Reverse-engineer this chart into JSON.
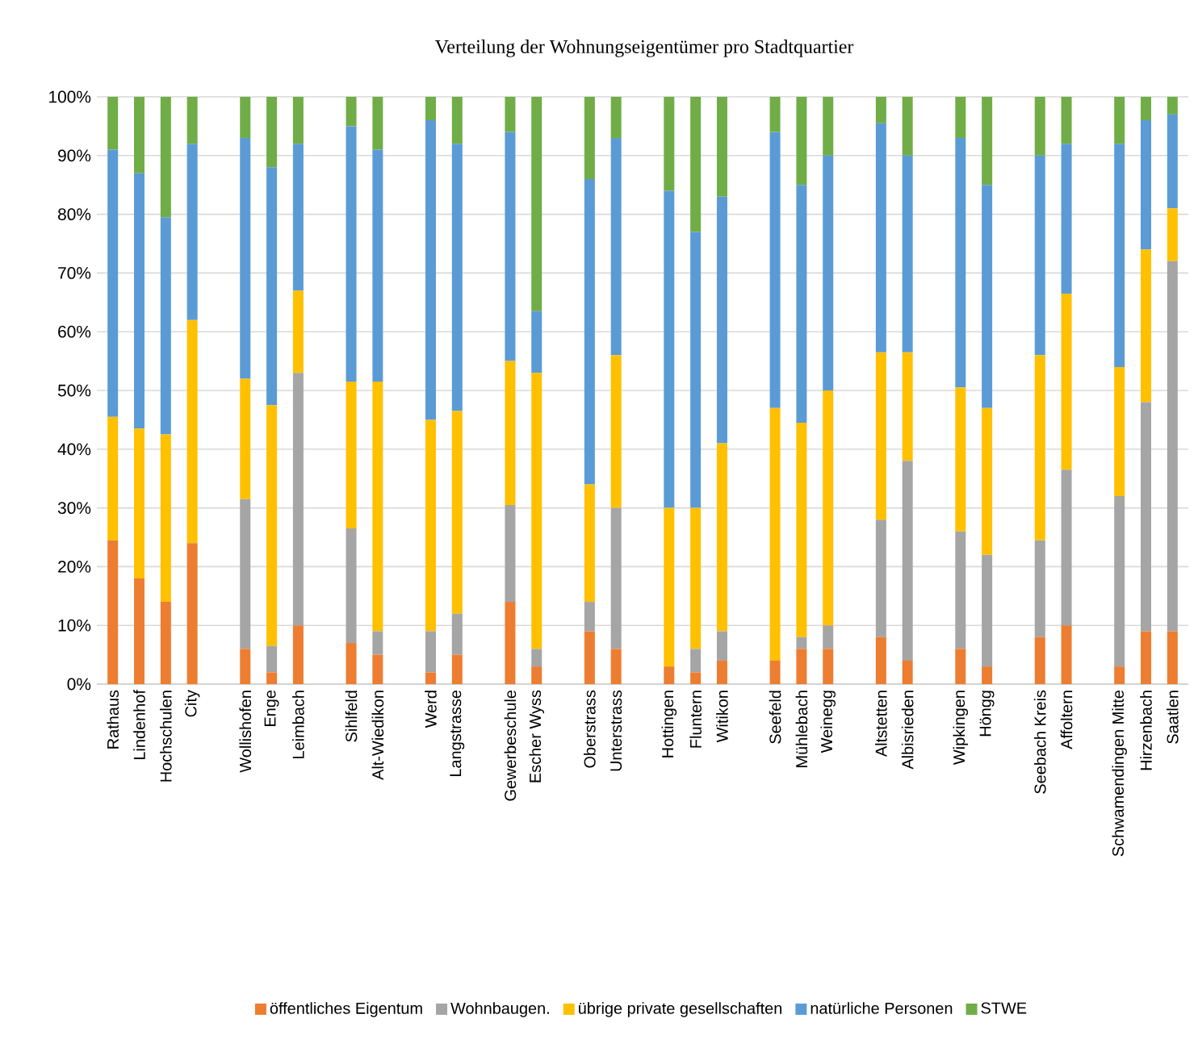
{
  "chart_data": {
    "type": "bar",
    "stacked": true,
    "title": "Verteilung der Wohnungseigentümer pro Stadtquartier",
    "categories": [
      "Rathaus",
      "Lindenhof",
      "Hochschulen",
      "City",
      null,
      "Wollishofen",
      "Enge",
      "Leimbach",
      null,
      "Sihlfeld",
      "Alt-Wiedikon",
      null,
      "Werd",
      "Langstrasse",
      null,
      "Gewerbeschule",
      "Escher Wyss",
      null,
      "Oberstrass",
      "Unterstrass",
      null,
      "Hottingen",
      "Fluntern",
      "Witikon",
      null,
      "Seefeld",
      "Mühlebach",
      "Weinegg",
      null,
      "Altstetten",
      "Albisrieden",
      null,
      "Wipkingen",
      "Höngg",
      null,
      "Seebach Kreis",
      "Affoltern",
      null,
      "Schwamendingen Mitte",
      "Hirzenbach",
      "Saatlen"
    ],
    "series": [
      {
        "name": "öffentliches Eigentum",
        "color": "#ed7d31",
        "values": [
          24.5,
          18,
          14,
          24,
          null,
          6,
          2,
          10,
          null,
          7,
          5,
          null,
          2,
          5,
          null,
          14,
          3,
          null,
          9,
          6,
          null,
          3,
          2,
          4,
          null,
          4,
          6,
          6,
          null,
          8,
          4,
          null,
          6,
          3,
          null,
          8,
          10,
          null,
          3,
          9,
          9
        ]
      },
      {
        "name": "Wohnbaugen.",
        "color": "#a5a5a5",
        "values": [
          0,
          0,
          0,
          0,
          null,
          25.5,
          4.5,
          43,
          null,
          19.5,
          4,
          null,
          7,
          7,
          null,
          16.5,
          3,
          null,
          5,
          24,
          null,
          0,
          4,
          5,
          null,
          0,
          2,
          4,
          null,
          20,
          34,
          null,
          20,
          19,
          null,
          16.5,
          26.5,
          null,
          29,
          39,
          63
        ]
      },
      {
        "name": "übrige private gesellschaften",
        "color": "#ffc000",
        "values": [
          21,
          25.5,
          28.5,
          38,
          null,
          20.5,
          41,
          14,
          null,
          25,
          42.5,
          null,
          36,
          34.5,
          null,
          24.5,
          47,
          null,
          20,
          26,
          null,
          27,
          24,
          32,
          null,
          43,
          36.5,
          40,
          null,
          28.5,
          18.5,
          null,
          24.5,
          25,
          null,
          31.5,
          30,
          null,
          22,
          26,
          9
        ]
      },
      {
        "name": "natürliche Personen",
        "color": "#5b9bd5",
        "values": [
          45.5,
          43.5,
          37,
          30,
          null,
          41,
          40.5,
          25,
          null,
          43.5,
          39.5,
          null,
          51,
          45.5,
          null,
          39,
          10.5,
          null,
          52,
          37,
          null,
          54,
          47,
          42,
          null,
          47,
          40.5,
          40,
          null,
          39,
          33.5,
          null,
          42.5,
          38,
          null,
          34,
          25.5,
          null,
          38,
          22,
          16
        ]
      },
      {
        "name": "STWE",
        "color": "#70ad47",
        "values": [
          9,
          13,
          20.5,
          8,
          null,
          7,
          12,
          8,
          null,
          5,
          9,
          null,
          4,
          8,
          null,
          6,
          36.5,
          null,
          14,
          7,
          null,
          16,
          23,
          17,
          null,
          6,
          15,
          10,
          null,
          4.5,
          10,
          null,
          7,
          15,
          null,
          10,
          8,
          null,
          8,
          4,
          3
        ]
      }
    ],
    "ylim": [
      0,
      100
    ],
    "yticks": [
      {
        "value": 0,
        "label": "0%"
      },
      {
        "value": 10,
        "label": "10%"
      },
      {
        "value": 20,
        "label": "20%"
      },
      {
        "value": 30,
        "label": "30%"
      },
      {
        "value": 40,
        "label": "40%"
      },
      {
        "value": 50,
        "label": "50%"
      },
      {
        "value": 60,
        "label": "60%"
      },
      {
        "value": 70,
        "label": "70%"
      },
      {
        "value": 80,
        "label": "80%"
      },
      {
        "value": 90,
        "label": "90%"
      },
      {
        "value": 100,
        "label": "100%"
      }
    ],
    "grid": "y",
    "legend": "bottom"
  }
}
